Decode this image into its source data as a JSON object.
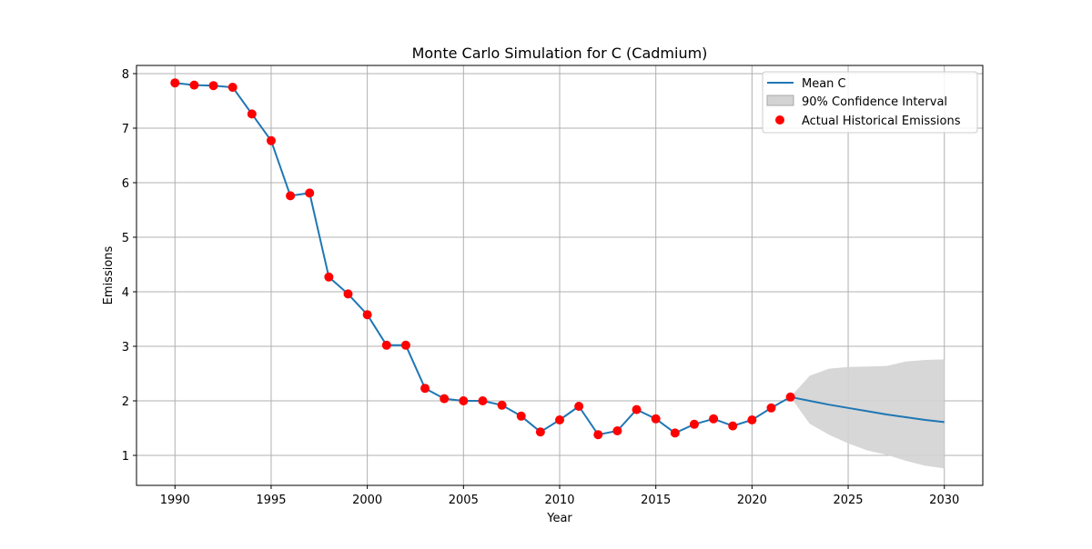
{
  "chart_data": {
    "type": "line",
    "title": "Monte Carlo Simulation for C (Cadmium)",
    "xlabel": "Year",
    "ylabel": "Emissions",
    "xlim": [
      1988,
      2032
    ],
    "ylim": [
      0.45,
      8.15
    ],
    "xticks": [
      1990,
      1995,
      2000,
      2005,
      2010,
      2015,
      2020,
      2025,
      2030
    ],
    "yticks": [
      1,
      2,
      3,
      4,
      5,
      6,
      7,
      8
    ],
    "grid": true,
    "legend_position": "top-right",
    "colors": {
      "mean_line": "#1f77b4",
      "ci_fill": "#d3d3d3",
      "actual_points": "#ff0000",
      "grid": "#b0b0b0"
    },
    "series": [
      {
        "name": "Mean C",
        "kind": "line",
        "x": [
          1990,
          1991,
          1992,
          1993,
          1994,
          1995,
          1996,
          1997,
          1998,
          1999,
          2000,
          2001,
          2002,
          2003,
          2004,
          2005,
          2006,
          2007,
          2008,
          2009,
          2010,
          2011,
          2012,
          2013,
          2014,
          2015,
          2016,
          2017,
          2018,
          2019,
          2020,
          2021,
          2022,
          2023,
          2024,
          2025,
          2026,
          2027,
          2028,
          2029,
          2030
        ],
        "y": [
          7.83,
          7.79,
          7.78,
          7.75,
          7.26,
          6.77,
          5.76,
          5.81,
          4.27,
          3.96,
          3.58,
          3.02,
          3.02,
          2.23,
          2.04,
          2.0,
          2.0,
          1.92,
          1.72,
          1.43,
          1.65,
          1.9,
          1.38,
          1.45,
          1.84,
          1.67,
          1.41,
          1.57,
          1.67,
          1.54,
          1.65,
          1.87,
          2.07,
          2.0,
          1.93,
          1.87,
          1.81,
          1.75,
          1.7,
          1.65,
          1.61
        ]
      },
      {
        "name": "90% Confidence Interval",
        "kind": "band",
        "x": [
          2022,
          2023,
          2024,
          2025,
          2026,
          2027,
          2028,
          2029,
          2030
        ],
        "lower": [
          2.07,
          1.58,
          1.38,
          1.22,
          1.09,
          1.01,
          0.9,
          0.81,
          0.76
        ],
        "upper": [
          2.07,
          2.46,
          2.59,
          2.62,
          2.63,
          2.64,
          2.72,
          2.75,
          2.76
        ]
      },
      {
        "name": "Actual Historical Emissions",
        "kind": "scatter",
        "x": [
          1990,
          1991,
          1992,
          1993,
          1994,
          1995,
          1996,
          1997,
          1998,
          1999,
          2000,
          2001,
          2002,
          2003,
          2004,
          2005,
          2006,
          2007,
          2008,
          2009,
          2010,
          2011,
          2012,
          2013,
          2014,
          2015,
          2016,
          2017,
          2018,
          2019,
          2020,
          2021,
          2022
        ],
        "y": [
          7.83,
          7.79,
          7.78,
          7.75,
          7.26,
          6.77,
          5.76,
          5.81,
          4.27,
          3.96,
          3.58,
          3.02,
          3.02,
          2.23,
          2.04,
          2.0,
          2.0,
          1.92,
          1.72,
          1.43,
          1.65,
          1.9,
          1.38,
          1.45,
          1.84,
          1.67,
          1.41,
          1.57,
          1.67,
          1.54,
          1.65,
          1.87,
          2.07
        ]
      }
    ]
  }
}
